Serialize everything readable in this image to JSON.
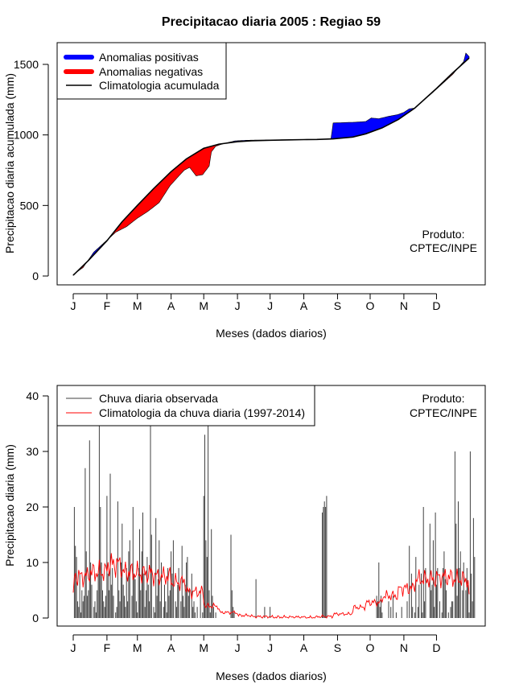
{
  "title": "Precipitacao diaria 2005 : Regiao 59",
  "months": [
    "J",
    "F",
    "M",
    "A",
    "M",
    "J",
    "J",
    "A",
    "S",
    "O",
    "N",
    "D"
  ],
  "product": [
    "Produto:",
    "CPTEC/INPE"
  ],
  "colors": {
    "positive": "#0000ff",
    "negative": "#ff0000",
    "clim_line": "#000000",
    "obs_bar": "#404040",
    "clim_daily": "#ff0000"
  },
  "chart_data": [
    {
      "type": "area",
      "title": "Precipitacao diaria 2005 : Regiao 59",
      "xlabel": "Meses (dados diarios)",
      "ylabel": "Precipitacao diaria acumulada (mm)",
      "xlim": [
        1,
        365
      ],
      "ylim": [
        0,
        1580
      ],
      "yticks": [
        0,
        500,
        1000,
        1500
      ],
      "grid": false,
      "legend": {
        "position": "top-left",
        "entries": [
          "Anomalias positivas",
          "Anomalias negativas",
          "Climatologia acumulada"
        ]
      },
      "climatology_cumulative": [
        [
          1,
          5
        ],
        [
          15,
          110
        ],
        [
          32,
          250
        ],
        [
          46,
          385
        ],
        [
          60,
          500
        ],
        [
          75,
          620
        ],
        [
          91,
          740
        ],
        [
          105,
          830
        ],
        [
          121,
          905
        ],
        [
          135,
          935
        ],
        [
          152,
          952
        ],
        [
          165,
          958
        ],
        [
          182,
          962
        ],
        [
          200,
          965
        ],
        [
          213,
          967
        ],
        [
          225,
          968
        ],
        [
          240,
          972
        ],
        [
          258,
          985
        ],
        [
          270,
          1008
        ],
        [
          285,
          1050
        ],
        [
          300,
          1110
        ],
        [
          315,
          1190
        ],
        [
          335,
          1330
        ],
        [
          350,
          1440
        ],
        [
          365,
          1545
        ]
      ],
      "observed_cumulative": [
        [
          1,
          10
        ],
        [
          10,
          60
        ],
        [
          20,
          170
        ],
        [
          30,
          240
        ],
        [
          40,
          310
        ],
        [
          50,
          350
        ],
        [
          60,
          410
        ],
        [
          70,
          460
        ],
        [
          80,
          520
        ],
        [
          90,
          640
        ],
        [
          97,
          700
        ],
        [
          103,
          750
        ],
        [
          108,
          770
        ],
        [
          114,
          710
        ],
        [
          120,
          718
        ],
        [
          126,
          780
        ],
        [
          128,
          880
        ],
        [
          132,
          920
        ],
        [
          140,
          940
        ],
        [
          150,
          958
        ],
        [
          160,
          962
        ],
        [
          175,
          964
        ],
        [
          200,
          966
        ],
        [
          225,
          968
        ],
        [
          238,
          972
        ],
        [
          240,
          1085
        ],
        [
          260,
          1090
        ],
        [
          270,
          1095
        ],
        [
          275,
          1120
        ],
        [
          282,
          1115
        ],
        [
          290,
          1130
        ],
        [
          300,
          1145
        ],
        [
          305,
          1160
        ],
        [
          310,
          1185
        ],
        [
          315,
          1190
        ],
        [
          330,
          1290
        ],
        [
          350,
          1430
        ],
        [
          360,
          1520
        ],
        [
          362,
          1580
        ],
        [
          365,
          1555
        ]
      ]
    },
    {
      "type": "bar",
      "title": "",
      "xlabel": "Meses (dados diarios)",
      "ylabel": "Precipitacao diaria (mm)",
      "xlim": [
        1,
        365
      ],
      "ylim": [
        0,
        40
      ],
      "yticks": [
        0,
        10,
        20,
        30,
        40
      ],
      "grid": false,
      "legend": {
        "position": "top-left",
        "entries": [
          "Chuva diaria observada",
          "Climatologia da chuva diaria (1997-2014)"
        ]
      },
      "observed_daily": [
        0,
        20,
        13,
        11,
        3,
        2,
        8,
        1,
        5,
        3,
        4,
        27,
        12,
        4,
        5,
        32,
        10,
        6,
        0,
        2,
        3,
        1,
        5,
        8,
        35,
        20,
        10,
        5,
        3,
        2,
        4,
        22,
        8,
        5,
        26,
        6,
        9,
        4,
        0,
        1,
        2,
        21,
        5,
        3,
        10,
        17,
        6,
        4,
        2,
        9,
        3,
        12,
        14,
        0,
        4,
        20,
        8,
        7,
        3,
        1,
        9,
        16,
        5,
        12,
        19,
        8,
        2,
        5,
        11,
        6,
        3,
        36,
        15,
        0,
        2,
        1,
        18,
        4,
        7,
        14,
        3,
        10,
        0,
        2,
        6,
        3,
        1,
        9,
        4,
        5,
        12,
        8,
        14,
        0,
        3,
        2,
        6,
        9,
        0,
        3,
        13,
        4,
        2,
        6,
        10,
        11,
        4,
        5,
        0,
        8,
        2,
        3,
        1,
        0,
        2,
        0,
        0,
        5,
        0,
        1,
        22,
        33,
        14,
        11,
        35,
        5,
        1,
        16,
        4,
        2,
        0,
        1,
        0,
        0,
        0,
        0,
        0,
        0,
        0,
        0,
        0,
        0,
        0,
        0,
        0,
        15,
        5,
        2,
        1,
        0,
        0,
        0,
        0,
        0,
        0,
        0,
        0,
        0,
        0,
        0,
        0,
        0,
        0,
        0,
        0,
        0,
        0,
        0,
        7,
        0,
        0,
        0,
        0,
        0,
        0,
        0,
        2,
        0,
        0,
        0,
        0,
        2,
        0,
        0,
        0,
        0,
        0,
        0,
        0,
        0,
        0,
        0,
        0,
        0,
        0,
        0,
        0,
        0,
        0,
        0,
        0,
        0,
        0,
        0,
        0,
        0,
        0,
        0,
        0,
        0,
        0,
        0,
        0,
        0,
        0,
        0,
        0,
        0,
        0,
        0,
        0,
        0,
        0,
        0,
        0,
        0,
        0,
        0,
        0,
        19,
        20,
        21,
        20,
        22,
        0,
        0,
        0,
        0,
        0,
        0,
        0,
        0,
        0,
        0,
        0,
        0,
        0,
        0,
        0,
        0,
        0,
        0,
        0,
        0,
        0,
        0,
        0,
        0,
        0,
        0,
        0,
        0,
        0,
        0,
        0,
        0,
        0,
        0,
        0,
        0,
        0,
        0,
        0,
        0,
        0,
        0,
        0,
        0,
        0,
        4,
        3,
        10,
        2,
        4,
        1,
        0,
        0,
        0,
        0,
        0,
        3,
        0,
        2,
        0,
        4,
        0,
        0,
        1,
        0,
        0,
        0,
        0,
        2,
        0,
        0,
        0,
        0,
        3,
        0,
        13,
        0,
        8,
        2,
        0,
        1,
        11,
        0,
        2,
        6,
        0,
        8,
        1,
        20,
        3,
        9,
        0,
        0,
        0,
        17,
        5,
        6,
        14,
        2,
        19,
        6,
        9,
        0,
        3,
        0,
        1,
        9,
        12,
        7,
        5,
        0,
        1,
        0,
        2,
        3,
        3,
        0,
        30,
        17,
        4,
        21,
        9,
        12,
        0,
        5,
        10,
        0,
        5,
        9,
        6,
        1,
        30,
        8,
        3,
        18,
        11
      ]
    }
  ],
  "clim_daily_labels": [
    "Chuva diaria observada",
    "Climatologia da chuva diaria (1997-2014)"
  ]
}
